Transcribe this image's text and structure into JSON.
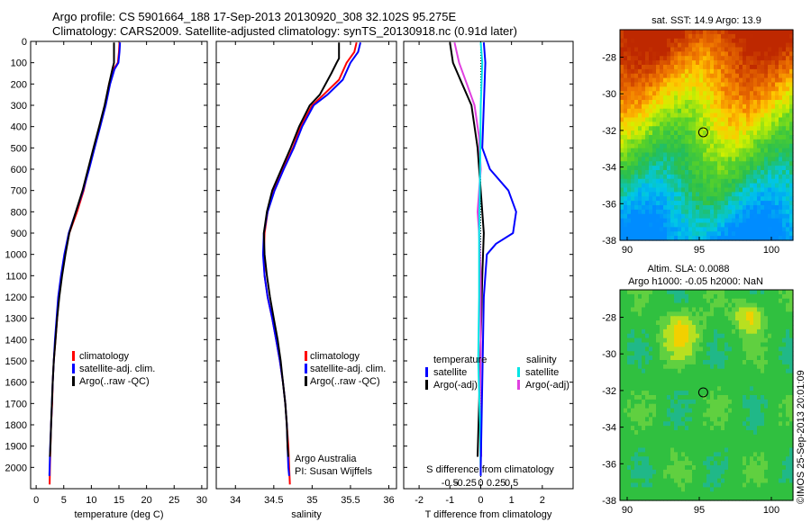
{
  "header": {
    "line1": "Argo profile: CS 5901664_188 17-Sep-2013 20130920_308 32.102S 95.275E",
    "line2": "Climatology: CARS2009. Satellite-adjusted climatology: synTS_20130918.nc (0.91d later)"
  },
  "colors": {
    "climatology": "#ff0000",
    "satellite": "#0000ff",
    "argo": "#000000",
    "sal_satellite": "#00e5e5",
    "sal_argo": "#e040e0"
  },
  "chart_data": [
    {
      "type": "line",
      "panel": "temperature",
      "xlabel": "temperature (deg C)",
      "ylabel": "",
      "xlim": [
        -1,
        31
      ],
      "ylim": [
        2100,
        0
      ],
      "xticks": [
        0,
        5,
        10,
        15,
        20,
        25,
        30
      ],
      "yticks": [
        0,
        100,
        200,
        300,
        400,
        500,
        600,
        700,
        800,
        900,
        1000,
        1100,
        1200,
        1300,
        1400,
        1500,
        1600,
        1700,
        1800,
        1900,
        2000
      ],
      "legend": [
        "climatology",
        "satellite-adj. clim.",
        "Argo(..raw -QC)"
      ],
      "series": [
        {
          "name": "climatology",
          "color": "#ff0000",
          "points": [
            [
              15.1,
              5
            ],
            [
              15.0,
              50
            ],
            [
              14.8,
              100
            ],
            [
              14.0,
              130
            ],
            [
              13.2,
              200
            ],
            [
              12.5,
              300
            ],
            [
              11.5,
              400
            ],
            [
              10.5,
              500
            ],
            [
              9.5,
              600
            ],
            [
              8.6,
              700
            ],
            [
              7.4,
              800
            ],
            [
              6.0,
              900
            ],
            [
              5.2,
              1000
            ],
            [
              4.6,
              1100
            ],
            [
              4.1,
              1200
            ],
            [
              3.8,
              1300
            ],
            [
              3.5,
              1400
            ],
            [
              3.2,
              1500
            ],
            [
              3.0,
              1600
            ],
            [
              2.9,
              1700
            ],
            [
              2.7,
              1800
            ],
            [
              2.6,
              1900
            ],
            [
              2.5,
              2000
            ],
            [
              2.45,
              2080
            ]
          ]
        },
        {
          "name": "satellite-adj. clim.",
          "color": "#0000ff",
          "points": [
            [
              15.2,
              5
            ],
            [
              15.1,
              50
            ],
            [
              14.9,
              100
            ],
            [
              14.2,
              130
            ],
            [
              13.4,
              200
            ],
            [
              12.6,
              300
            ],
            [
              11.6,
              400
            ],
            [
              10.6,
              500
            ],
            [
              9.6,
              600
            ],
            [
              8.5,
              700
            ],
            [
              7.2,
              800
            ],
            [
              5.9,
              900
            ],
            [
              5.1,
              1000
            ],
            [
              4.5,
              1100
            ],
            [
              4.0,
              1200
            ],
            [
              3.7,
              1300
            ],
            [
              3.4,
              1400
            ],
            [
              3.2,
              1500
            ],
            [
              3.0,
              1600
            ],
            [
              2.85,
              1700
            ],
            [
              2.7,
              1800
            ],
            [
              2.55,
              1900
            ],
            [
              2.45,
              2000
            ],
            [
              2.4,
              2040
            ]
          ]
        },
        {
          "name": "Argo(..raw -QC)",
          "color": "#000000",
          "points": [
            [
              14.1,
              5
            ],
            [
              14.1,
              100
            ],
            [
              13.8,
              130
            ],
            [
              13.2,
              200
            ],
            [
              12.4,
              300
            ],
            [
              11.4,
              400
            ],
            [
              10.4,
              500
            ],
            [
              9.4,
              600
            ],
            [
              8.4,
              700
            ],
            [
              7.2,
              800
            ],
            [
              6.0,
              900
            ],
            [
              5.3,
              1000
            ],
            [
              4.7,
              1100
            ],
            [
              4.2,
              1200
            ],
            [
              3.8,
              1300
            ],
            [
              3.5,
              1400
            ],
            [
              3.2,
              1500
            ],
            [
              3.0,
              1600
            ],
            [
              2.85,
              1700
            ],
            [
              2.7,
              1800
            ],
            [
              2.6,
              1900
            ],
            [
              2.5,
              1950
            ]
          ]
        }
      ]
    },
    {
      "type": "line",
      "panel": "salinity",
      "xlabel": "salinity",
      "xlim": [
        33.75,
        36.1
      ],
      "ylim": [
        2100,
        0
      ],
      "xticks": [
        34,
        34.5,
        35,
        35.5,
        36
      ],
      "legend": [
        "climatology",
        "satellite-adj. clim.",
        "Argo(..raw -QC)"
      ],
      "annotation": [
        "Argo Australia",
        "PI: Susan Wijffels"
      ],
      "series": [
        {
          "name": "climatology",
          "color": "#ff0000",
          "points": [
            [
              35.58,
              5
            ],
            [
              35.55,
              50
            ],
            [
              35.45,
              100
            ],
            [
              35.35,
              180
            ],
            [
              35.15,
              250
            ],
            [
              35.0,
              300
            ],
            [
              34.85,
              400
            ],
            [
              34.75,
              500
            ],
            [
              34.62,
              600
            ],
            [
              34.5,
              700
            ],
            [
              34.42,
              800
            ],
            [
              34.38,
              900
            ],
            [
              34.37,
              1000
            ],
            [
              34.38,
              1100
            ],
            [
              34.42,
              1200
            ],
            [
              34.48,
              1300
            ],
            [
              34.53,
              1400
            ],
            [
              34.58,
              1500
            ],
            [
              34.62,
              1600
            ],
            [
              34.65,
              1700
            ],
            [
              34.67,
              1800
            ],
            [
              34.69,
              1900
            ],
            [
              34.7,
              2000
            ],
            [
              34.71,
              2080
            ]
          ]
        },
        {
          "name": "satellite-adj. clim.",
          "color": "#0000ff",
          "points": [
            [
              35.63,
              5
            ],
            [
              35.6,
              50
            ],
            [
              35.5,
              100
            ],
            [
              35.4,
              180
            ],
            [
              35.2,
              250
            ],
            [
              35.02,
              300
            ],
            [
              34.87,
              400
            ],
            [
              34.76,
              500
            ],
            [
              34.63,
              600
            ],
            [
              34.51,
              700
            ],
            [
              34.42,
              800
            ],
            [
              34.37,
              900
            ],
            [
              34.36,
              1000
            ],
            [
              34.38,
              1100
            ],
            [
              34.42,
              1200
            ],
            [
              34.48,
              1300
            ],
            [
              34.53,
              1400
            ],
            [
              34.58,
              1500
            ],
            [
              34.62,
              1600
            ],
            [
              34.65,
              1700
            ],
            [
              34.67,
              1800
            ],
            [
              34.68,
              1900
            ],
            [
              34.69,
              2000
            ],
            [
              34.7,
              2040
            ]
          ]
        },
        {
          "name": "Argo(..raw -QC)",
          "color": "#000000",
          "points": [
            [
              35.35,
              5
            ],
            [
              35.35,
              80
            ],
            [
              35.32,
              100
            ],
            [
              35.25,
              150
            ],
            [
              35.1,
              250
            ],
            [
              34.97,
              300
            ],
            [
              34.83,
              400
            ],
            [
              34.72,
              500
            ],
            [
              34.6,
              600
            ],
            [
              34.48,
              700
            ],
            [
              34.41,
              800
            ],
            [
              34.37,
              900
            ],
            [
              34.38,
              1000
            ],
            [
              34.41,
              1100
            ],
            [
              34.45,
              1200
            ],
            [
              34.5,
              1300
            ],
            [
              34.55,
              1400
            ],
            [
              34.59,
              1500
            ],
            [
              34.62,
              1600
            ],
            [
              34.65,
              1700
            ],
            [
              34.67,
              1800
            ],
            [
              34.68,
              1900
            ],
            [
              34.69,
              1950
            ]
          ]
        }
      ]
    },
    {
      "type": "line",
      "panel": "difference",
      "xlabel": "T difference from climatology",
      "top_label": "S difference from climatology",
      "xlim": [
        -2.5,
        3
      ],
      "ylim": [
        2100,
        0
      ],
      "xticks": [
        -2,
        -1,
        0,
        1,
        2
      ],
      "secondary_xticks": [
        -0.5,
        -0.25,
        0,
        0.25,
        0.5
      ],
      "secondary_xticklabels": [
        "-0.5",
        "-0.25",
        "0",
        "0.25",
        "0.5"
      ],
      "legend_left_title": "temperature",
      "legend_right_title": "salinity",
      "legend": [
        "satellite",
        "Argo(-adj)",
        "satellite",
        "Argo(-adj)"
      ],
      "series": [
        {
          "name": "temperature satellite",
          "color": "#0000ff",
          "points": [
            [
              0.1,
              5
            ],
            [
              0.15,
              100
            ],
            [
              0.1,
              300
            ],
            [
              0.05,
              500
            ],
            [
              0.3,
              600
            ],
            [
              0.9,
              700
            ],
            [
              1.15,
              800
            ],
            [
              1.05,
              900
            ],
            [
              0.5,
              950
            ],
            [
              0.2,
              1000
            ],
            [
              0.1,
              1200
            ],
            [
              0.05,
              1600
            ],
            [
              0.0,
              2000
            ],
            [
              0.0,
              2040
            ]
          ]
        },
        {
          "name": "temperature Argo(-adj)",
          "color": "#000000",
          "points": [
            [
              -1.0,
              5
            ],
            [
              -0.9,
              100
            ],
            [
              -0.6,
              200
            ],
            [
              -0.3,
              300
            ],
            [
              -0.1,
              500
            ],
            [
              0.0,
              700
            ],
            [
              0.1,
              900
            ],
            [
              0.05,
              1100
            ],
            [
              0.0,
              1400
            ],
            [
              -0.05,
              1700
            ],
            [
              -0.1,
              1950
            ]
          ]
        },
        {
          "name": "salinity satellite",
          "color": "#00e5e5",
          "points": [
            [
              0.0,
              5
            ],
            [
              0.05,
              100
            ],
            [
              0.0,
              300
            ],
            [
              -0.02,
              600
            ],
            [
              -0.05,
              900
            ],
            [
              -0.05,
              1200
            ],
            [
              -0.08,
              1500
            ],
            [
              -0.02,
              1800
            ],
            [
              0.0,
              2040
            ]
          ]
        },
        {
          "name": "salinity Argo(-adj)",
          "color": "#e040e0",
          "points": [
            [
              -0.85,
              5
            ],
            [
              -0.7,
              100
            ],
            [
              -0.45,
              200
            ],
            [
              -0.2,
              300
            ],
            [
              -0.05,
              450
            ],
            [
              0.0,
              600
            ],
            [
              -0.1,
              800
            ],
            [
              -0.05,
              900
            ],
            [
              0.0,
              1100
            ],
            [
              0.0,
              1400
            ],
            [
              -0.02,
              1700
            ],
            [
              0.02,
              1950
            ]
          ]
        }
      ]
    },
    {
      "type": "heatmap",
      "panel": "sst",
      "title": "sat. SST: 14.9 Argo: 13.9",
      "xlim": [
        89.5,
        101.5
      ],
      "ylim": [
        -38,
        -26.5
      ],
      "xticks": [
        90,
        95,
        100
      ],
      "yticks": [
        -28,
        -30,
        -32,
        -34,
        -36,
        -38
      ],
      "marker": {
        "lon": 95.275,
        "lat": -32.102
      }
    },
    {
      "type": "heatmap",
      "panel": "sla",
      "title": "Altim. SLA: 0.0088",
      "subtitle": "Argo h1000: -0.05 h2000: NaN",
      "xlim": [
        89.5,
        101.5
      ],
      "ylim": [
        -38,
        -26.5
      ],
      "xticks": [
        90,
        95,
        100
      ],
      "yticks": [
        -28,
        -30,
        -32,
        -34,
        -36,
        -38
      ],
      "marker": {
        "lon": 95.275,
        "lat": -32.102
      }
    }
  ],
  "side_label": "©IMOS 25-Sep-2013 20:01:09"
}
